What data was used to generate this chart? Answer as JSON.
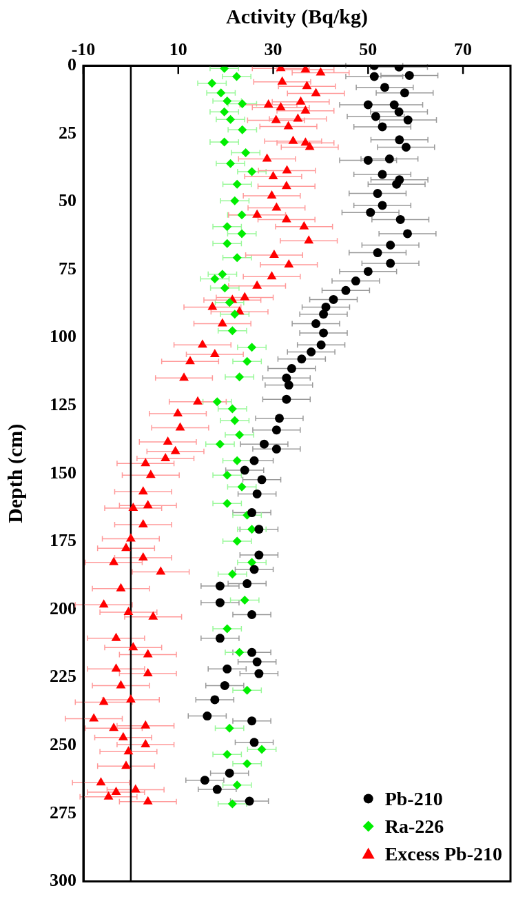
{
  "chart_data": {
    "type": "scatter",
    "xlabel": "Activity (Bq/kg)",
    "ylabel": "Depth (cm)",
    "xlim": [
      -10,
      80
    ],
    "xticks": [
      -10,
      10,
      30,
      50,
      70
    ],
    "ylim": [
      300,
      0
    ],
    "yticks": [
      0,
      25,
      50,
      75,
      100,
      125,
      150,
      175,
      200,
      225,
      250,
      275,
      300
    ],
    "legend": "bottom right",
    "ref_lines": [
      {
        "axis": "x",
        "value": 0,
        "color": "#000000"
      }
    ],
    "series": [
      {
        "name": "Pb-210",
        "color": "#000000",
        "marker": "circle",
        "x": [
          51.3,
          56.5,
          58.7,
          51.3,
          53.5,
          57.7,
          50,
          55.5,
          56.5,
          51.6,
          58.4,
          53,
          56.6,
          58,
          50,
          54.5,
          53,
          56.6,
          56,
          52,
          53,
          50.5,
          56.8,
          58.3,
          54.7,
          52,
          54.7,
          50,
          47.4,
          45.3,
          42.7,
          41.1,
          40.6,
          39,
          40.6,
          40.1,
          38,
          36,
          33.9,
          32.8,
          33.3,
          32.8,
          31.3,
          30.7,
          28.1,
          30.7,
          26,
          24,
          27.6,
          26.6,
          25.5,
          27,
          27,
          26,
          24.5,
          18.8,
          18.8,
          25.5,
          18.8,
          25.5,
          26.6,
          27,
          20.3,
          19.8,
          17.7,
          16.1,
          25.5,
          26,
          20.8,
          15.6,
          18.2,
          25
        ],
        "values": [
          0,
          0.5,
          3.6,
          4,
          8,
          10,
          14.4,
          14.4,
          17,
          18.7,
          20,
          22.5,
          27.3,
          30,
          34.8,
          34.3,
          40,
          42,
          43.6,
          47,
          51.4,
          54,
          56.6,
          61.8,
          66,
          68.8,
          72.7,
          75.7,
          79.2,
          82.7,
          86,
          88.8,
          91.4,
          94.9,
          98.3,
          102.7,
          105.3,
          107.9,
          111.4,
          114.9,
          117.5,
          122.7,
          129.7,
          134,
          139.2,
          141,
          145.3,
          148.8,
          152.3,
          157.5,
          164.4,
          170.5,
          180,
          185.3,
          190.5,
          191.4,
          197.5,
          201.9,
          210.6,
          215.8,
          219.3,
          223.6,
          221.9,
          228,
          233.2,
          239.2,
          241,
          248.9,
          260.2,
          262.8,
          266.2,
          270.5
        ],
        "xerrors": [
          6,
          6,
          6,
          6,
          6,
          6,
          6,
          6,
          6,
          6,
          6,
          6,
          6,
          6,
          6,
          6,
          6,
          6,
          6,
          6,
          6,
          6,
          6,
          6,
          6,
          6,
          6,
          6,
          5,
          5,
          5,
          5,
          5,
          5,
          5,
          5,
          5,
          5,
          5,
          5,
          5,
          5,
          5,
          5,
          5,
          5,
          4,
          4,
          4,
          4,
          4,
          4,
          4,
          4,
          4,
          4,
          4,
          4,
          4,
          4,
          4,
          4,
          4,
          4,
          4,
          4,
          4,
          4,
          4,
          4,
          4,
          4
        ]
      },
      {
        "name": "Ra-226",
        "color": "#00ee00",
        "marker": "diamond",
        "x": [
          19.7,
          22.3,
          17.1,
          19,
          20.3,
          23.5,
          19.7,
          21,
          23.5,
          19.7,
          24.2,
          21,
          25.5,
          22.4,
          21.9,
          23.4,
          20.3,
          23.4,
          20.3,
          22.4,
          19.3,
          17.7,
          19.8,
          20.8,
          21.9,
          21.4,
          25.5,
          24.5,
          22.9,
          18.2,
          21.4,
          21.9,
          22.9,
          18.8,
          22.4,
          20.3,
          23.4,
          20.3,
          24.5,
          25.5,
          22.4,
          25.5,
          21.4,
          24,
          20.3,
          22.9,
          24.5,
          20.8,
          27.6,
          20.3,
          24.5,
          22.4,
          21.4
        ],
        "values": [
          1,
          4,
          6.5,
          10,
          13,
          14,
          17,
          19.8,
          23.6,
          28.1,
          32,
          36,
          39,
          43.6,
          49.7,
          54.9,
          59.2,
          61.8,
          65.4,
          70.6,
          76.7,
          78.4,
          81.8,
          87.1,
          91.4,
          97.5,
          103.6,
          108.8,
          114.5,
          123.6,
          126.2,
          130.5,
          135.8,
          139.2,
          145.3,
          150.6,
          154.9,
          161,
          165.3,
          170.5,
          174.9,
          182.7,
          187,
          196.6,
          207.1,
          215.8,
          229.7,
          243.7,
          251.5,
          253.3,
          256.7,
          264.6,
          271.5
        ],
        "xerrors": [
          3,
          3,
          3,
          3,
          3,
          3,
          3,
          3,
          3,
          3,
          3,
          3,
          3,
          3,
          3,
          3,
          3,
          3,
          3,
          3,
          3,
          3,
          3,
          3,
          3,
          3,
          3,
          3,
          3,
          3,
          3,
          3,
          3,
          3,
          3,
          3,
          3,
          3,
          3,
          3,
          3,
          3,
          3,
          3,
          3,
          3,
          3,
          3,
          3,
          3,
          3,
          3,
          3
        ]
      },
      {
        "name": "Excess Pb-210",
        "color": "#ff0000",
        "marker": "triangle",
        "x": [
          31.6,
          36.8,
          40,
          31.9,
          37.1,
          39,
          29,
          31.6,
          35.8,
          36.8,
          30.6,
          33.2,
          35.2,
          34.2,
          36.8,
          37.7,
          28.7,
          32.9,
          30,
          32.8,
          29.7,
          30.7,
          26.6,
          32.8,
          36.5,
          37.5,
          30.2,
          33.3,
          29.7,
          26.6,
          24,
          21.4,
          17.2,
          22.9,
          19.3,
          15.1,
          17.7,
          12.5,
          11.2,
          14.1,
          9.9,
          10.4,
          7.8,
          9.4,
          7.3,
          3.1,
          4.2,
          2.6,
          3.6,
          0.5,
          2.6,
          0,
          -1,
          -3.6,
          2.6,
          6.3,
          -2.1,
          -5.7,
          -0.5,
          4.7,
          -3.1,
          0.5,
          3.6,
          -3.1,
          3.6,
          -2.1,
          0,
          -5.7,
          -7.8,
          -3.6,
          3.1,
          -1.6,
          3.1,
          -0.5,
          -1,
          -6.3,
          -3.1,
          -4.7,
          1,
          3.6
        ],
        "values": [
          1,
          1.5,
          2.6,
          6,
          7.6,
          10.2,
          14.4,
          15.4,
          13.3,
          16.6,
          20.1,
          22.4,
          19.6,
          27.8,
          28.4,
          30,
          34.3,
          38.6,
          40.8,
          44.4,
          47.9,
          52.3,
          54.9,
          56.6,
          59.2,
          64.4,
          69.7,
          73.2,
          77.6,
          81,
          85.3,
          86.2,
          88.8,
          90.5,
          94.9,
          102.7,
          106.2,
          108.8,
          114.9,
          123.6,
          128,
          133.2,
          138.4,
          141.9,
          144.5,
          146.3,
          150.6,
          156.7,
          161.8,
          162.7,
          168.8,
          174,
          177.5,
          182.7,
          181,
          186.2,
          192.3,
          198.3,
          201,
          202.7,
          210.6,
          214,
          216.6,
          221.9,
          223.6,
          228,
          233.2,
          234.1,
          240.2,
          243.7,
          242.8,
          247.1,
          249.7,
          252.3,
          257.6,
          263.7,
          267.2,
          268.9,
          266.3,
          270.7
        ],
        "xerrors": [
          6,
          6,
          6,
          6,
          6,
          6,
          6,
          6,
          6,
          6,
          6,
          6,
          6,
          6,
          6,
          6,
          6,
          6,
          6,
          6,
          6,
          6,
          6,
          6,
          6,
          6,
          6,
          6,
          6,
          6,
          6,
          6,
          6,
          6,
          6,
          6,
          6,
          6,
          6,
          6,
          6,
          6,
          6,
          6,
          6,
          6,
          6,
          6,
          6,
          6,
          6,
          6,
          6,
          6,
          6,
          6,
          6,
          6,
          6,
          6,
          6,
          6,
          6,
          6,
          6,
          6,
          6,
          6,
          6,
          6,
          6,
          6,
          6,
          6,
          6,
          6,
          6,
          6,
          6,
          6
        ]
      }
    ]
  }
}
